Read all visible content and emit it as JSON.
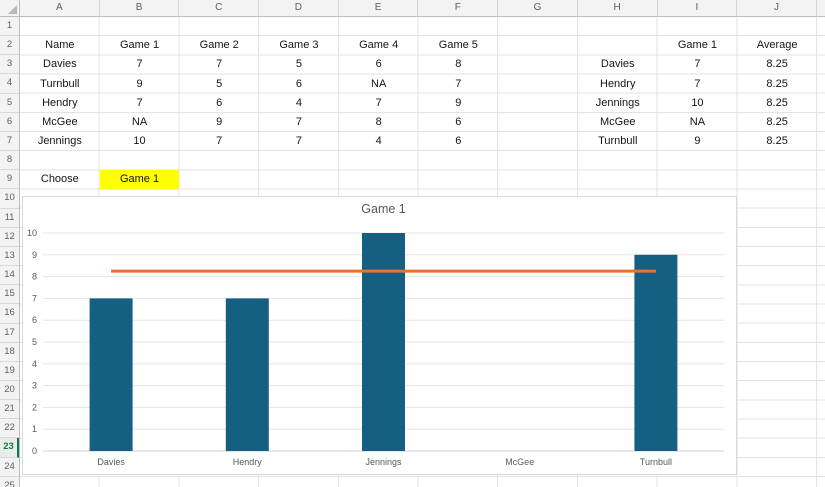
{
  "sheet": {
    "column_headers": [
      "A",
      "B",
      "C",
      "D",
      "E",
      "F",
      "G",
      "H",
      "I",
      "J"
    ],
    "row_headers": [
      "1",
      "2",
      "3",
      "4",
      "5",
      "6",
      "7",
      "8",
      "9",
      "10",
      "11",
      "12",
      "13",
      "14",
      "15",
      "16",
      "17",
      "18",
      "19",
      "20",
      "21",
      "22",
      "23",
      "24",
      "25"
    ],
    "active_row": "23"
  },
  "tables": {
    "scores": {
      "headers": [
        "Name",
        "Game 1",
        "Game 2",
        "Game 3",
        "Game 4",
        "Game 5"
      ],
      "rows": [
        [
          "Davies",
          "7",
          "7",
          "5",
          "6",
          "8"
        ],
        [
          "Turnbull",
          "9",
          "5",
          "6",
          "NA",
          "7"
        ],
        [
          "Hendry",
          "7",
          "6",
          "4",
          "7",
          "9"
        ],
        [
          "McGee",
          "NA",
          "9",
          "7",
          "8",
          "6"
        ],
        [
          "Jennings",
          "10",
          "7",
          "7",
          "4",
          "6"
        ]
      ]
    },
    "choose": {
      "label": "Choose",
      "value": "Game 1",
      "highlight_color": "#FFFF00"
    },
    "summary": {
      "headers": [
        "Game 1",
        "Average"
      ],
      "rows": [
        [
          "Davies",
          "7",
          "8.25"
        ],
        [
          "Hendry",
          "7",
          "8.25"
        ],
        [
          "Jennings",
          "10",
          "8.25"
        ],
        [
          "McGee",
          "NA",
          "8.25"
        ],
        [
          "Turnbull",
          "9",
          "8.25"
        ]
      ]
    }
  },
  "chart_data": {
    "type": "bar",
    "title": "Game 1",
    "categories": [
      "Davies",
      "Hendry",
      "Jennings",
      "McGee",
      "Turnbull"
    ],
    "series": [
      {
        "name": "Game 1",
        "type": "bar",
        "values": [
          7,
          7,
          10,
          null,
          9
        ],
        "color": "#156082"
      },
      {
        "name": "Average",
        "type": "line",
        "values": [
          8.25,
          8.25,
          8.25,
          8.25,
          8.25
        ],
        "color": "#E97132"
      }
    ],
    "ylim": [
      0,
      10
    ],
    "ytick_step": 1,
    "grid": true,
    "legend_position": "none",
    "xlabel": "",
    "ylabel": ""
  },
  "colors": {
    "bar_fill": "#156082",
    "average_line": "#E97132",
    "choose_highlight": "#FFFF00",
    "active_row_accent": "#107C41",
    "chart_text": "#595959"
  }
}
